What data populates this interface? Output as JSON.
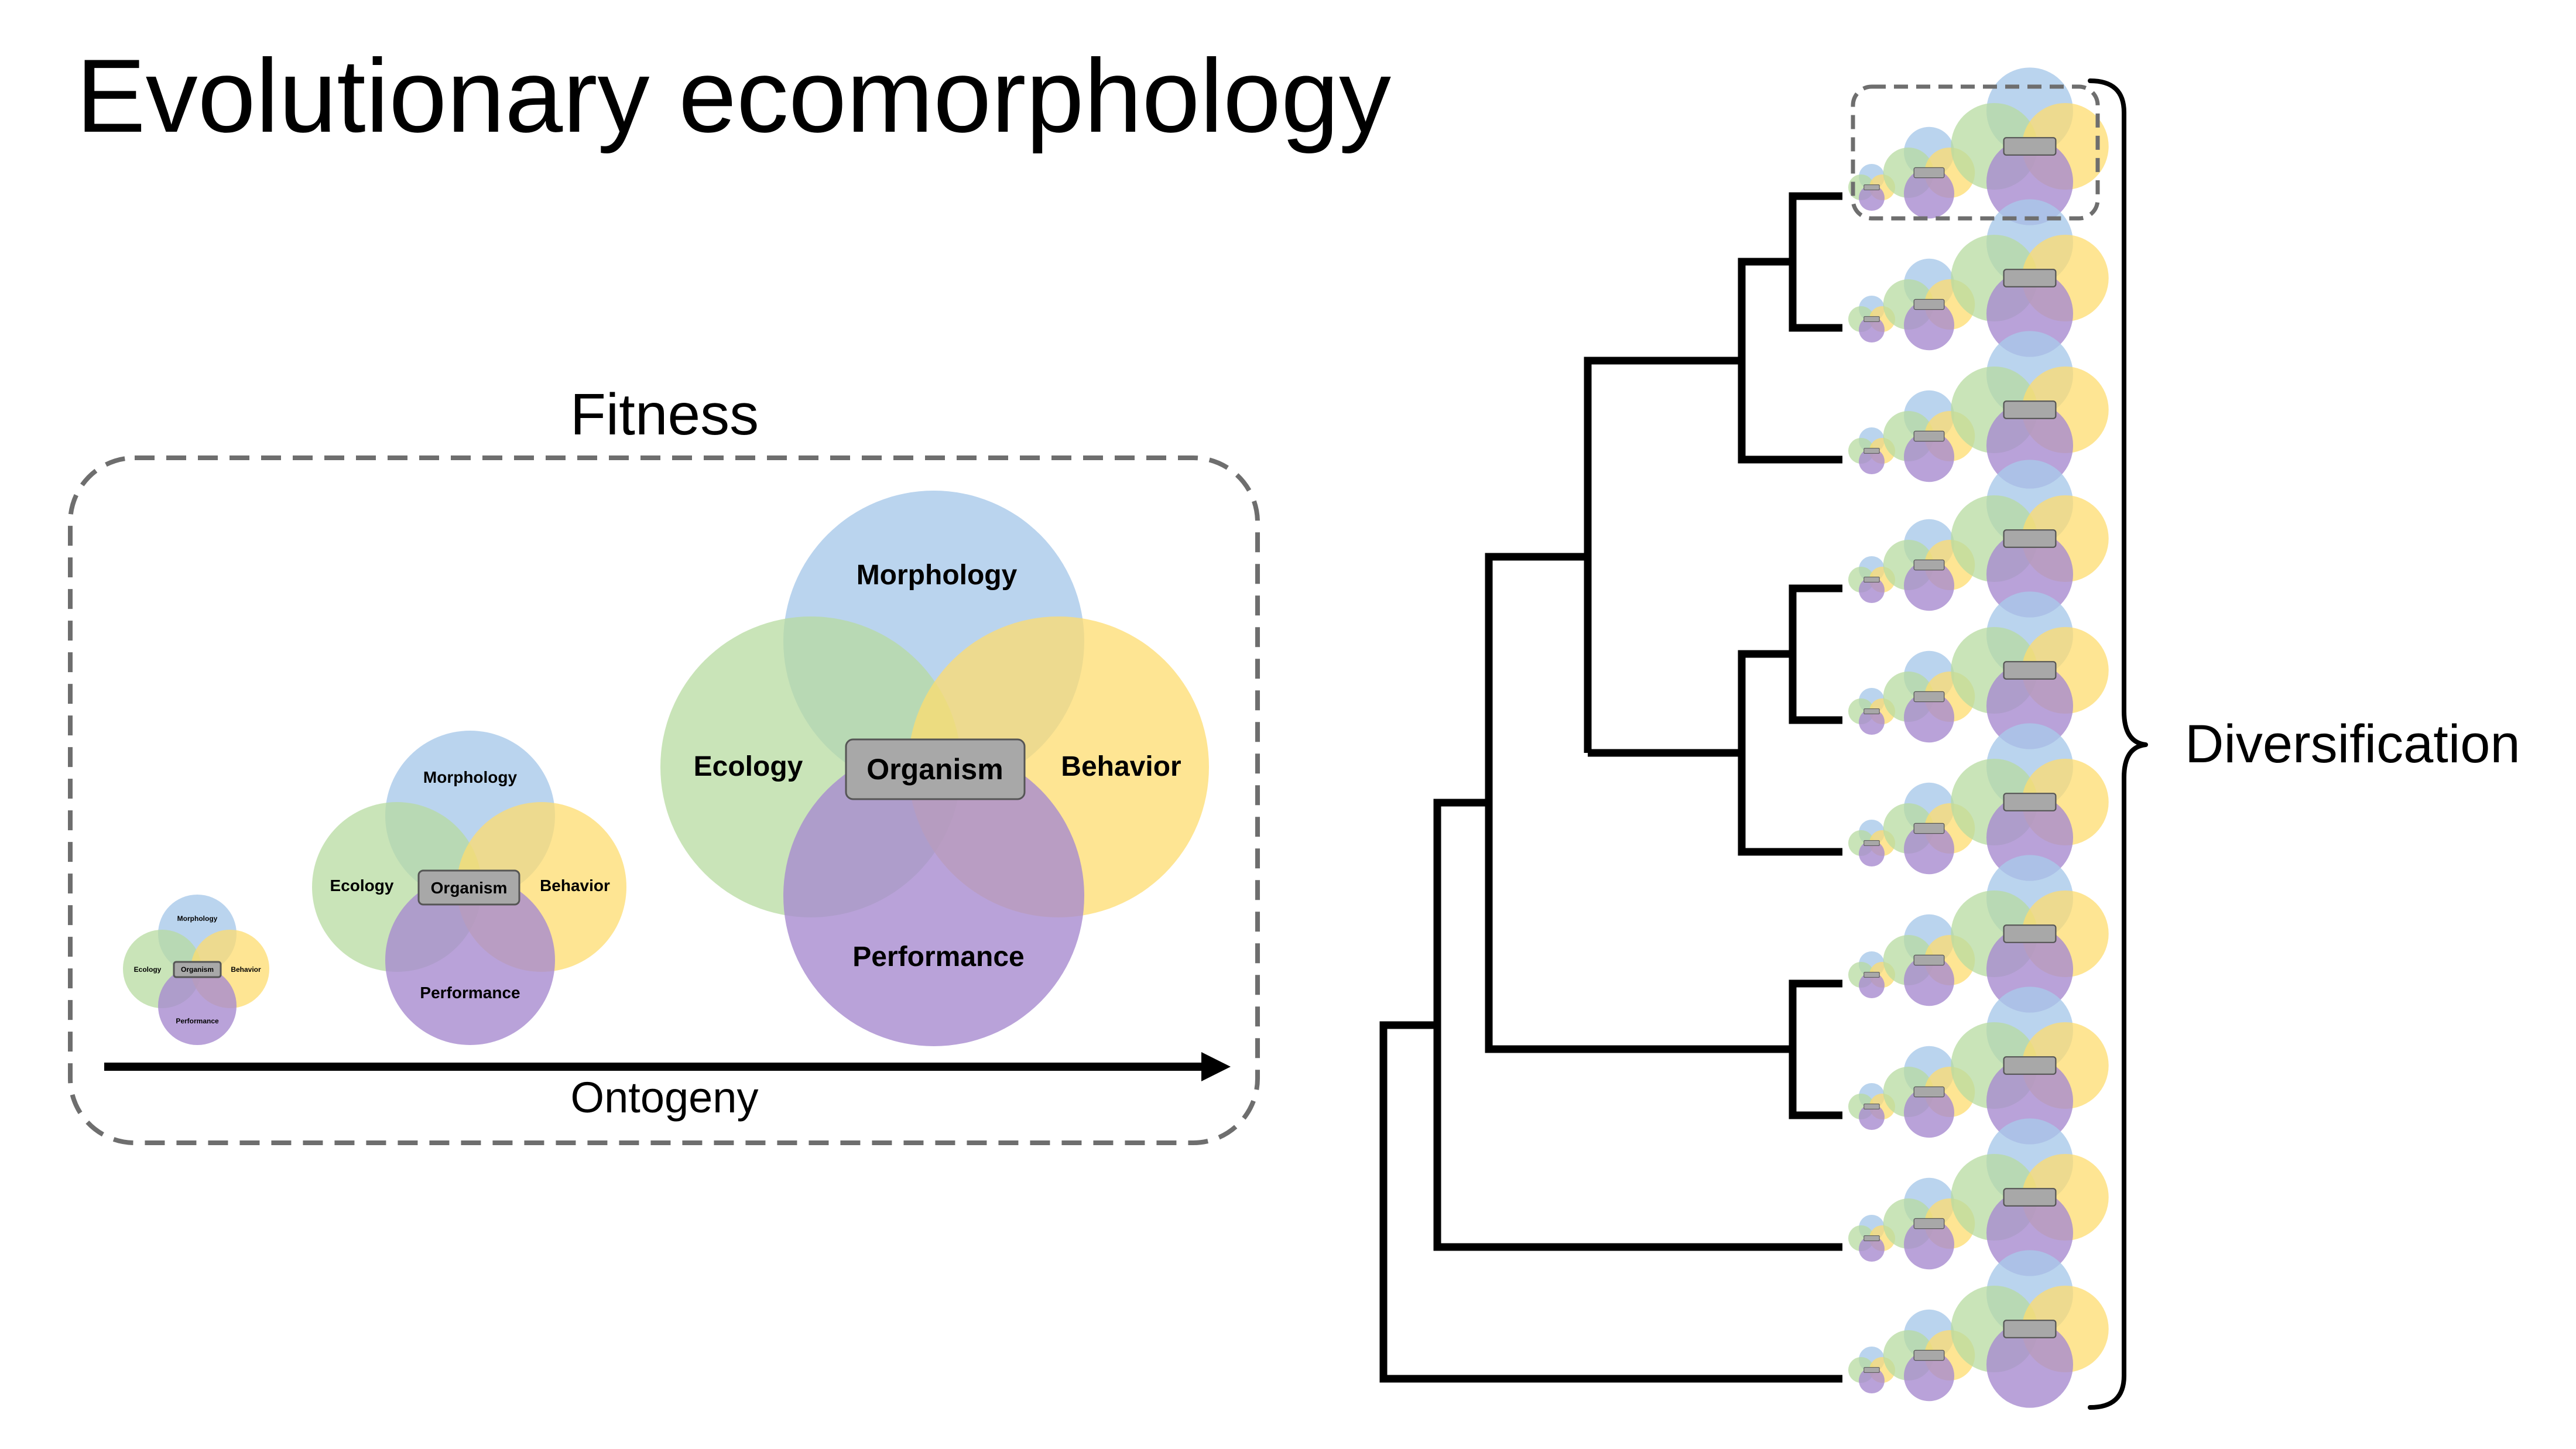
{
  "title": "Evolutionary ecomorphology",
  "fitness_label": "Fitness",
  "ontogeny_label": "Ontogeny",
  "diversification_label": "Diversification",
  "venn": {
    "morphology": "Morphology",
    "ecology": "Ecology",
    "behavior": "Behavior",
    "performance": "Performance",
    "organism": "Organism"
  },
  "colors": {
    "morphology": "#a9c9ea",
    "ecology": "#b7dba0",
    "behavior": "#fddc6f",
    "performance": "#a88bd0",
    "organism_box": "#a8a8a8",
    "dashed_border": "#6e6e6e",
    "line": "#000000"
  },
  "ontogeny_stages": [
    "small",
    "medium",
    "large"
  ],
  "tree": {
    "tip_count": 10,
    "newick": "((((((t1,t2),t3),((t4,t5),t6)),(t7,t8)),t9),t10)",
    "highlighted_tip": "t1"
  }
}
